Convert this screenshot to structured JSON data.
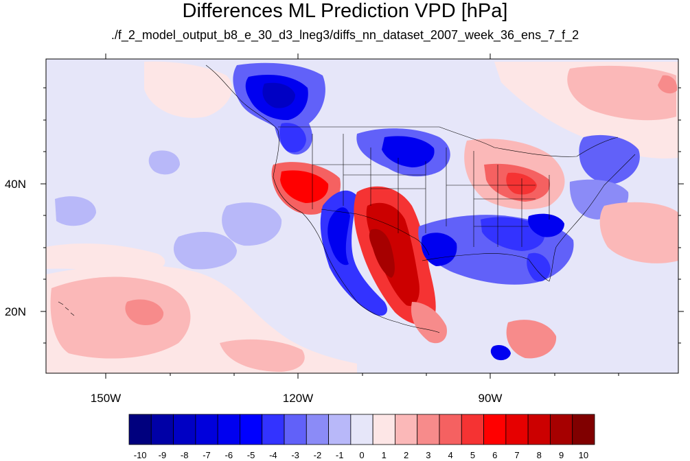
{
  "title": "Differences ML Prediction VPD [hPa]",
  "subtitle": "./f_2_model_output_b8_e_30_d3_lneg3/diffs_nn_dataset_2007_week_36_ens_7_f_2",
  "map": {
    "lon_labels": [
      "150W",
      "120W",
      "90W"
    ],
    "lat_labels": [
      "40N",
      "20N"
    ],
    "background_color": "#e6e6f9"
  },
  "colorbar": {
    "labels": [
      "-10",
      "-9",
      "-8",
      "-7",
      "-6",
      "-5",
      "-4",
      "-3",
      "-2",
      "-1",
      "0",
      "1",
      "2",
      "3",
      "4",
      "5",
      "6",
      "7",
      "8",
      "9",
      "10"
    ],
    "colors": [
      "#00007e",
      "#0000a6",
      "#0000c4",
      "#0000dc",
      "#0000f0",
      "#0000ff",
      "#3333ff",
      "#6161f9",
      "#8b8bf7",
      "#b8b8f9",
      "#e6e6f9",
      "#fde6e6",
      "#fbb8b8",
      "#f78b8b",
      "#f56161",
      "#f53333",
      "#ff0000",
      "#e60000",
      "#cc0000",
      "#a60000",
      "#800000"
    ]
  }
}
